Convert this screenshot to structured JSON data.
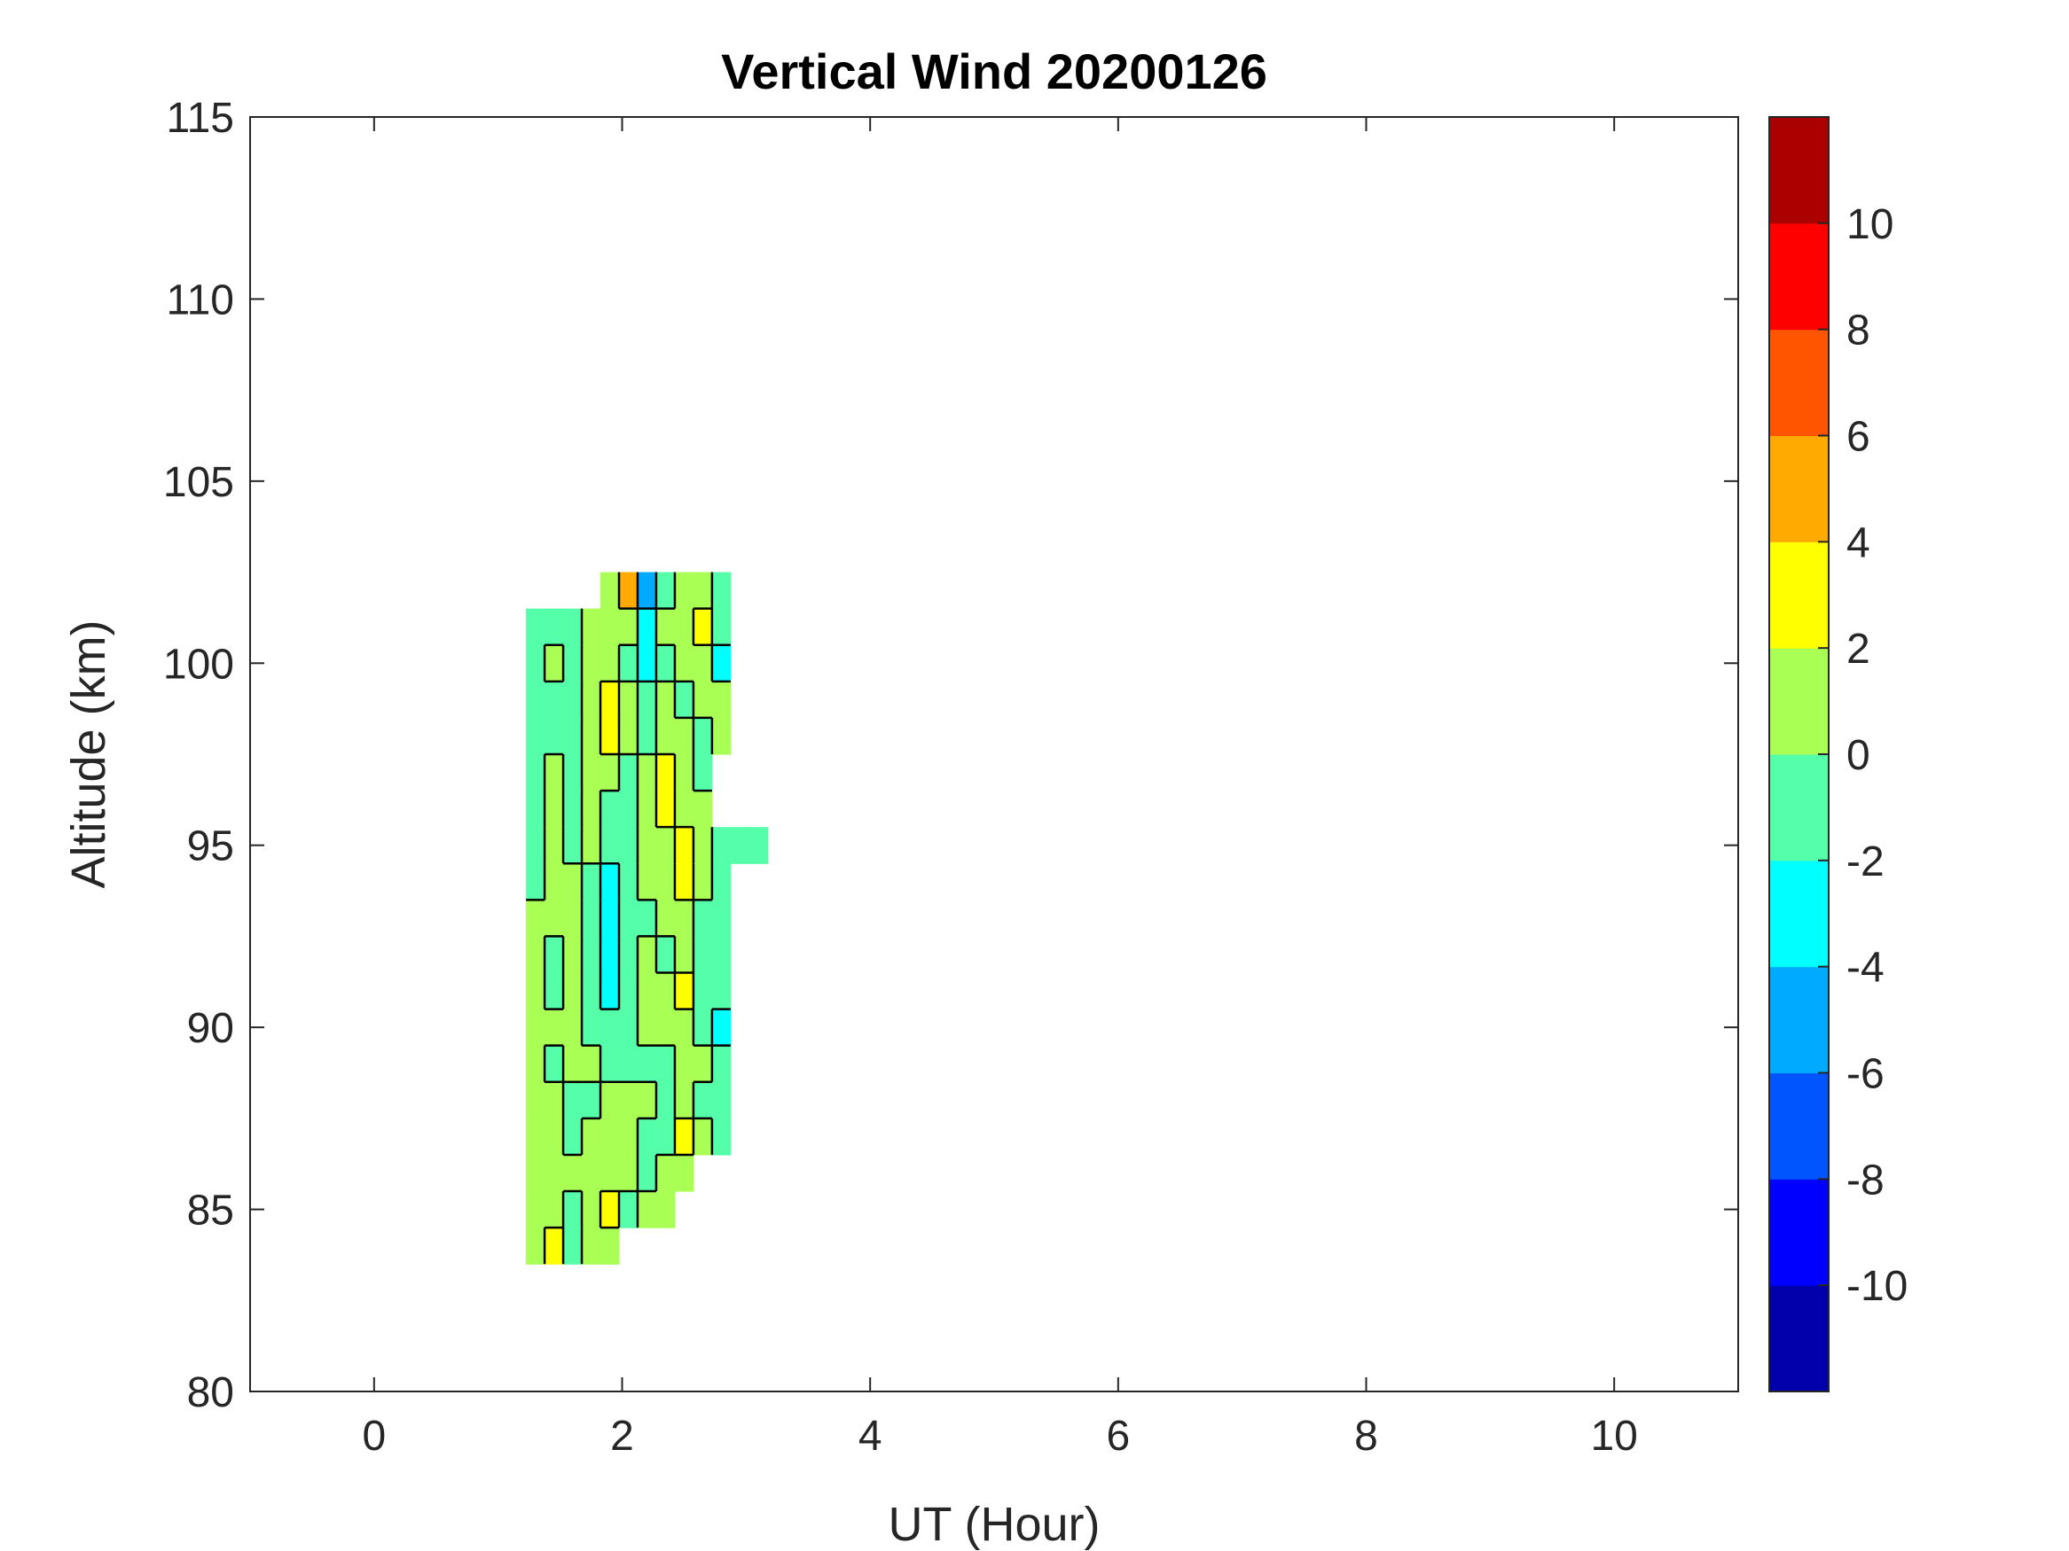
{
  "chart_data": {
    "type": "heatmap",
    "subtype": "filled-contour",
    "title": "Vertical Wind 20200126",
    "xlabel": "UT (Hour)",
    "ylabel": "Altitude (km)",
    "xlim": [
      -1,
      11
    ],
    "ylim": [
      80,
      115
    ],
    "xticks": [
      0,
      2,
      4,
      6,
      8,
      10
    ],
    "yticks": [
      80,
      85,
      90,
      95,
      100,
      105,
      110,
      115
    ],
    "colorbar": {
      "range": [
        -12,
        12
      ],
      "levels": [
        -12,
        -10,
        -8,
        -6,
        -4,
        -2,
        0,
        2,
        4,
        6,
        8,
        10,
        12
      ],
      "ticks": [
        -10,
        -8,
        -6,
        -4,
        -2,
        0,
        2,
        4,
        6,
        8,
        10
      ],
      "colors": [
        "#0000aa",
        "#0000ff",
        "#0055ff",
        "#00aaff",
        "#00ffff",
        "#55ffaa",
        "#aaff55",
        "#ffff00",
        "#ffaa00",
        "#ff5500",
        "#ff0000",
        "#aa0000"
      ]
    },
    "grid": false,
    "x": [
      1.3,
      1.45,
      1.6,
      1.75,
      1.9,
      2.05,
      2.2,
      2.35,
      2.5,
      2.65,
      2.8,
      2.95,
      3.1
    ],
    "y": [
      102,
      101,
      100,
      99,
      98,
      97,
      96,
      95,
      94,
      93,
      92,
      91,
      90,
      89,
      88,
      87,
      86,
      85,
      84
    ],
    "z": [
      [
        null,
        null,
        null,
        null,
        1,
        5,
        -5,
        -1,
        1,
        1,
        -1,
        null,
        null
      ],
      [
        -1,
        -1,
        -1,
        1,
        1,
        1,
        -3,
        1,
        1,
        3,
        -1,
        null,
        null
      ],
      [
        -1,
        1,
        -1,
        1,
        1,
        -1,
        -3,
        -1,
        1,
        1,
        -3,
        null,
        null
      ],
      [
        -1,
        -1,
        -1,
        1,
        3,
        1,
        -1,
        1,
        -1,
        1,
        1,
        null,
        null
      ],
      [
        -1,
        -1,
        -1,
        1,
        3,
        1,
        -1,
        1,
        1,
        -1,
        1,
        null,
        null
      ],
      [
        -1,
        1,
        -1,
        1,
        1,
        -1,
        1,
        3,
        1,
        -1,
        null,
        null,
        null
      ],
      [
        -1,
        1,
        -1,
        1,
        -1,
        -1,
        1,
        3,
        1,
        1,
        null,
        null,
        null
      ],
      [
        -1,
        1,
        -1,
        1,
        -1,
        -1,
        1,
        1,
        3,
        1,
        -1,
        -1,
        -1
      ],
      [
        -1,
        1,
        1,
        -1,
        -3,
        -1,
        1,
        1,
        3,
        1,
        -1,
        null,
        null
      ],
      [
        1,
        1,
        1,
        -1,
        -3,
        -1,
        -1,
        1,
        1,
        -1,
        -1,
        null,
        null
      ],
      [
        1,
        -1,
        1,
        -1,
        -3,
        -1,
        1,
        -1,
        1,
        -1,
        -1,
        null,
        null
      ],
      [
        1,
        -1,
        1,
        -1,
        -3,
        -1,
        1,
        1,
        3,
        -1,
        -1,
        null,
        null
      ],
      [
        1,
        1,
        1,
        -1,
        -1,
        -1,
        1,
        1,
        1,
        -1,
        -3,
        null,
        null
      ],
      [
        1,
        -1,
        1,
        1,
        -1,
        -1,
        -1,
        -1,
        1,
        1,
        -1,
        null,
        null
      ],
      [
        1,
        1,
        -1,
        -1,
        1,
        1,
        1,
        -1,
        1,
        -1,
        -1,
        null,
        null
      ],
      [
        1,
        1,
        -1,
        1,
        1,
        1,
        -1,
        -1,
        3,
        1,
        -1,
        null,
        null
      ],
      [
        1,
        1,
        1,
        1,
        1,
        1,
        -1,
        1,
        1,
        null,
        null,
        null,
        null
      ],
      [
        1,
        1,
        -1,
        1,
        3,
        -1,
        1,
        1,
        null,
        null,
        null,
        null,
        null
      ],
      [
        1,
        3,
        -1,
        1,
        1,
        null,
        null,
        null,
        null,
        null,
        null,
        null,
        null
      ]
    ]
  }
}
